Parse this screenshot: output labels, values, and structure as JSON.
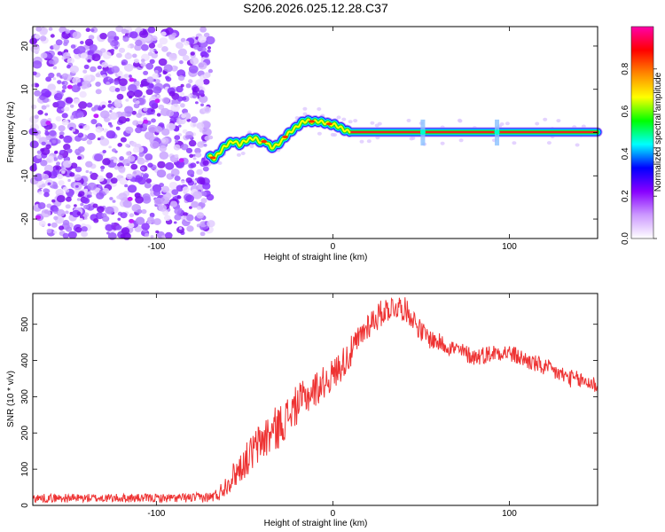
{
  "title": "S206.2026.025.12.28.C37",
  "chart_data": [
    {
      "type": "heatmap",
      "title": "S206.2026.025.12.28.C37",
      "xlabel": "Height of straight line (km)",
      "ylabel": "Frequency (Hz)",
      "xlim": [
        -170,
        150
      ],
      "ylim": [
        -24.5,
        24.5
      ],
      "xticks": [
        -100,
        0,
        100
      ],
      "yticks": [
        -20,
        -10,
        0,
        10,
        20
      ],
      "xtick_labels": [
        "-100",
        "0",
        "100"
      ],
      "ytick_labels": [
        "-20",
        "-10",
        "0",
        "10",
        "20"
      ],
      "noise_region_x": [
        -170,
        -69
      ],
      "carrier_track": {
        "x": [
          -70,
          -67,
          -64,
          -62,
          -59,
          -56,
          -53,
          -50,
          -47,
          -44,
          -41,
          -38,
          -35,
          -32,
          -29,
          -26,
          -23,
          -20,
          -17,
          -14,
          -11,
          -8,
          -5,
          -2,
          1,
          4,
          7,
          10,
          150
        ],
        "y": [
          -5.5,
          -6.0,
          -4.5,
          -3.5,
          -2.5,
          -2.0,
          -2.8,
          -2.0,
          -1.5,
          -1.3,
          -2.2,
          -2.0,
          -3.5,
          -3.0,
          -2.0,
          -0.5,
          0.5,
          1.5,
          2.5,
          2.7,
          2.5,
          2.6,
          2.3,
          2.0,
          1.8,
          1.2,
          0.5,
          0.1,
          0.1
        ]
      },
      "colorbar": {
        "label": "Normalized spectral amplitude",
        "range": [
          0.0,
          1.0
        ],
        "ticks": [
          0.0,
          0.2,
          0.4,
          0.6,
          0.8
        ],
        "tick_labels": [
          "0.0",
          "0.2",
          "0.4",
          "0.6",
          "0.8"
        ],
        "colors": [
          "#ffffff",
          "#cc99ff",
          "#8800ff",
          "#0000ff",
          "#00ffff",
          "#00ff00",
          "#ffff00",
          "#ff8800",
          "#ff0000",
          "#ff00aa"
        ]
      }
    },
    {
      "type": "line",
      "xlabel": "Height of straight line (km)",
      "ylabel": "SNR (10 * v/v)",
      "xlim": [
        -170,
        150
      ],
      "ylim": [
        0,
        585
      ],
      "xticks": [
        -100,
        0,
        100
      ],
      "yticks": [
        0,
        100,
        200,
        300,
        400,
        500
      ],
      "xtick_labels": [
        "-100",
        "0",
        "100"
      ],
      "ytick_labels": [
        "0",
        "100",
        "200",
        "300",
        "400",
        "500"
      ],
      "line_color": "#ee3333",
      "series": [
        {
          "name": "SNR",
          "x": [
            -170,
            -150,
            -130,
            -110,
            -90,
            -70,
            -65,
            -60,
            -55,
            -50,
            -45,
            -40,
            -35,
            -30,
            -25,
            -20,
            -15,
            -10,
            -5,
            0,
            5,
            10,
            15,
            20,
            25,
            30,
            35,
            40,
            45,
            50,
            55,
            60,
            65,
            70,
            75,
            80,
            85,
            90,
            95,
            100,
            105,
            110,
            115,
            120,
            125,
            130,
            135,
            140,
            145,
            150
          ],
          "y": [
            20,
            20,
            20,
            20,
            20,
            22,
            30,
            60,
            90,
            120,
            150,
            180,
            200,
            220,
            250,
            280,
            300,
            320,
            340,
            360,
            390,
            420,
            460,
            500,
            520,
            540,
            550,
            545,
            520,
            480,
            460,
            450,
            440,
            430,
            420,
            410,
            415,
            420,
            425,
            420,
            410,
            400,
            390,
            380,
            370,
            360,
            350,
            345,
            340,
            330
          ],
          "noise_amplitude": [
            12,
            12,
            12,
            12,
            12,
            14,
            20,
            30,
            40,
            45,
            55,
            60,
            65,
            60,
            55,
            55,
            50,
            50,
            45,
            45,
            45,
            45,
            40,
            40,
            40,
            35,
            35,
            35,
            30,
            30,
            28,
            26,
            25,
            25,
            25,
            25,
            25,
            25,
            25,
            25,
            25,
            25,
            25,
            25,
            25,
            25,
            25,
            25,
            25,
            25
          ]
        }
      ]
    }
  ]
}
